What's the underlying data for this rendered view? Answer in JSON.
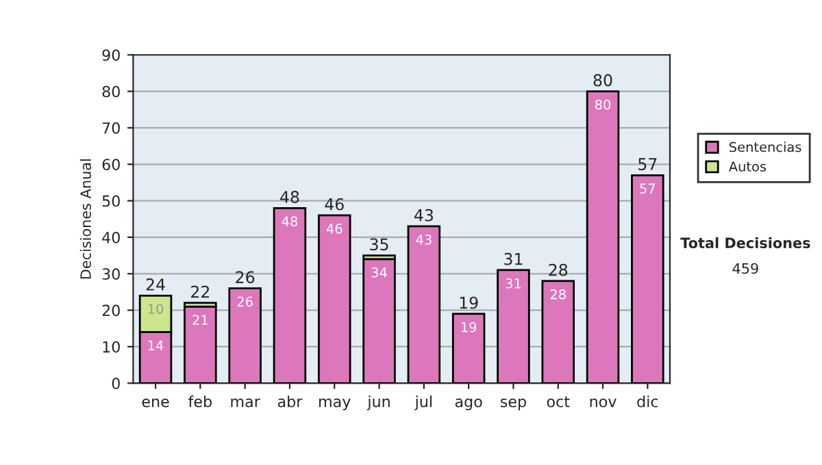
{
  "chart_data": {
    "type": "bar",
    "stacked": true,
    "ylabel": "Decisiones Anual",
    "categories": [
      "ene",
      "feb",
      "mar",
      "abr",
      "may",
      "jun",
      "jul",
      "ago",
      "sep",
      "oct",
      "nov",
      "dic"
    ],
    "series": [
      {
        "name": "Sentencias",
        "color": "#dd77bb",
        "values": [
          14,
          21,
          26,
          48,
          46,
          34,
          43,
          19,
          31,
          28,
          80,
          57
        ],
        "value_labels": [
          "14",
          "21",
          "26",
          "48",
          "46",
          "34",
          "43",
          "19",
          "31",
          "28",
          "80",
          "57"
        ]
      },
      {
        "name": "Autos",
        "color": "#cce68c",
        "values": [
          10,
          1,
          null,
          null,
          null,
          1,
          null,
          null,
          null,
          null,
          null,
          null
        ],
        "value_labels": [
          "10",
          null,
          null,
          null,
          null,
          null,
          null,
          null,
          null,
          null,
          null,
          null
        ]
      }
    ],
    "totals": [
      "24",
      "22",
      "26",
      "48",
      "46",
      "35",
      "43",
      "19",
      "31",
      "28",
      "80",
      "57"
    ],
    "ylim": [
      0,
      90
    ],
    "yticks": [
      0,
      10,
      20,
      30,
      40,
      50,
      60,
      70,
      80,
      90
    ],
    "grid": "y",
    "legend": "right",
    "annotations": [
      "Total Decisiones",
      "459"
    ]
  }
}
